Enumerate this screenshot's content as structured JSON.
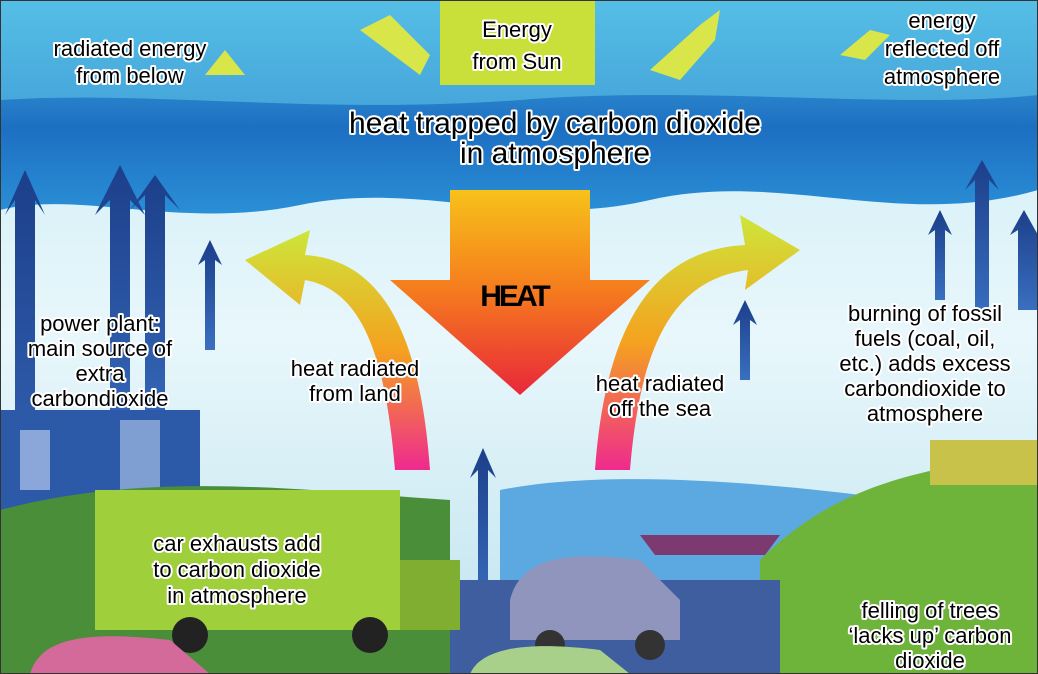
{
  "labels": [
    {
      "lines": [
        "radiated energy",
        "from below"
      ]
    },
    {
      "lines": [
        "Energy",
        "from Sun"
      ]
    },
    {
      "lines": [
        "energy",
        "reflected off",
        "atmosphere"
      ]
    },
    {
      "lines": [
        "heat trapped by carbon dioxide",
        "in atmosphere"
      ]
    },
    {
      "lines": [
        "HEAT"
      ]
    },
    {
      "lines": [
        "power plant:",
        "main source of",
        "extra",
        "carbondioxide"
      ]
    },
    {
      "lines": [
        "heat radiated",
        "from land"
      ]
    },
    {
      "lines": [
        "heat radiated",
        "off the sea"
      ]
    },
    {
      "lines": [
        "burning of fossil",
        "fuels (coal, oil,",
        "etc.) adds excess",
        "carbondioxide to",
        "atmosphere"
      ]
    },
    {
      "lines": [
        "car exhausts add",
        "to carbon dioxide",
        "in atmosphere"
      ]
    },
    {
      "lines": [
        "felling of trees",
        "‘lacks up’ carbon",
        "dioxide"
      ]
    }
  ]
}
